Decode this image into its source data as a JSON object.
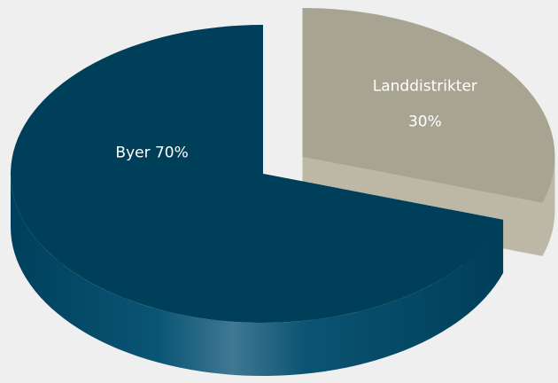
{
  "chart_data": {
    "type": "pie",
    "categories": [
      "Byer",
      "Landdistrikter"
    ],
    "values": [
      70,
      30
    ],
    "value_labels": [
      "70%",
      "30%"
    ],
    "colors": [
      "#003f5a",
      "#a8a492"
    ]
  }
}
